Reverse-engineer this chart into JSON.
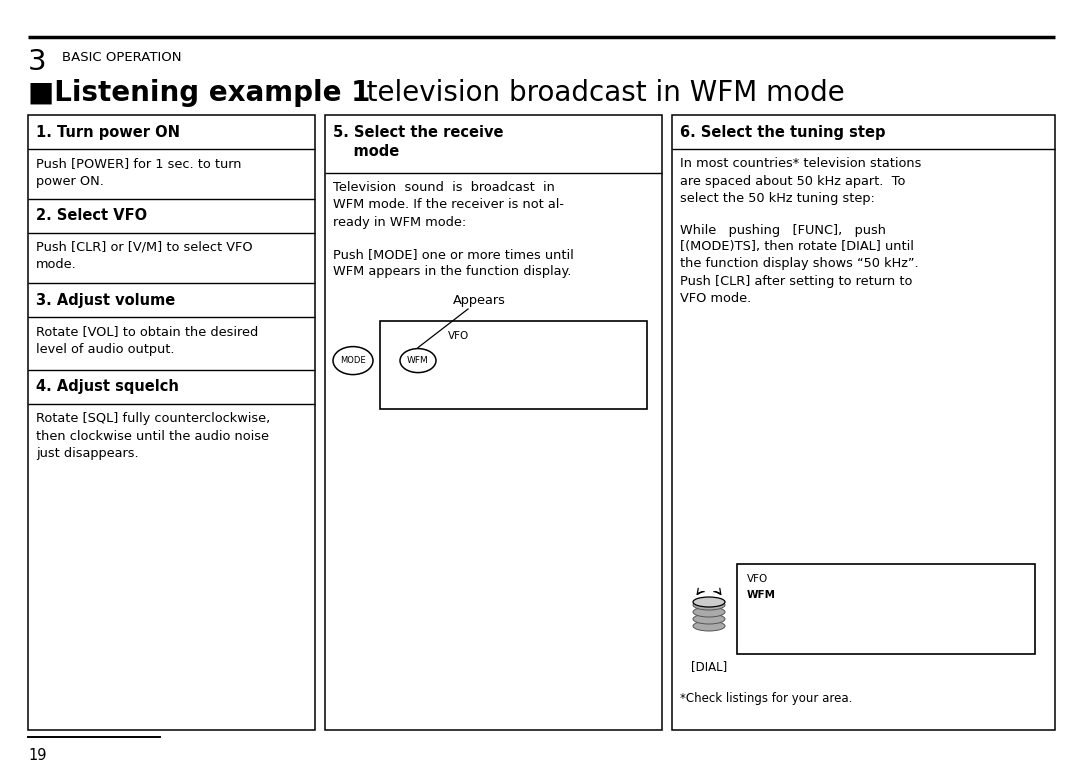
{
  "bg_color": "#ffffff",
  "page_number": "19",
  "chapter_number": "3",
  "chapter_title": "BASIC OPERATION",
  "title_left": "■Listening example 1",
  "title_right": "   television broadcast in WFM mode",
  "col1_headers": [
    "1. Turn power ON",
    "2. Select VFO",
    "3. Adjust volume",
    "4. Adjust squelch"
  ],
  "col1_body0": "Push [POWER] for 1 sec. to turn\npower ON.",
  "col1_body1": "Push [CLR] or [V/M] to select VFO\nmode.",
  "col1_body2": "Rotate [VOL] to obtain the desired\nlevel of audio output.",
  "col1_body3": "Rotate [SQL] fully counterclockwise,\nthen clockwise until the audio noise\njust disappears.",
  "col2_hdr1": "5. Select the receive",
  "col2_hdr2": "    mode",
  "col2_body1": "Television  sound  is  broadcast  in\nWFM mode. If the receiver is not al-\nready in WFM mode:",
  "col2_body2": "Push [MODE] one or more times until\nWFM appears in the function display.",
  "col2_appears": "Appears",
  "col3_header": "6. Select the tuning step",
  "col3_body1": "In most countries* television stations\nare spaced about 50 kHz apart.  To\nselect the 50 kHz tuning step:",
  "col3_body2a": "While   pushing   [FUNC],   push",
  "col3_body2b": "[(MODE)TS], then rotate [DIAL] until\nthe function display shows “50 kHz”.\nPush [CLR] after setting to return to\nVFO mode.",
  "col3_footnote": "*Check listings for your area.",
  "dial_label": "[DIAL]"
}
